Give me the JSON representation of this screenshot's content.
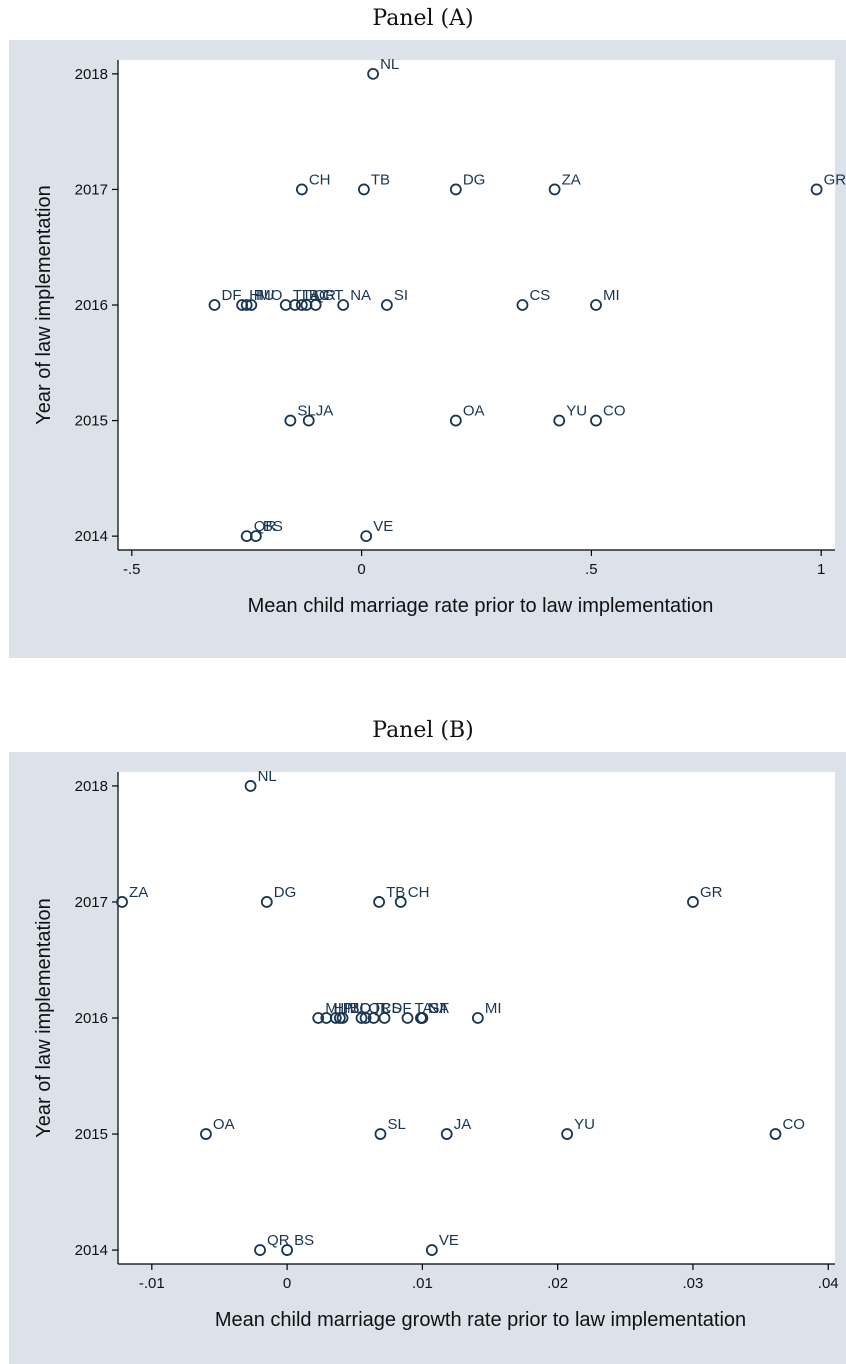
{
  "chart_data": [
    {
      "type": "scatter",
      "title": "Panel (A)",
      "xlabel": "Mean child marriage rate prior to law implementation",
      "ylabel": "Year of law implementation",
      "xlim": [
        -0.53,
        1.03
      ],
      "ylim": [
        2013.88,
        2018.12
      ],
      "xticks": [
        -0.5,
        0,
        0.5,
        1
      ],
      "xtick_labels": [
        "-.5",
        "0",
        ".5",
        "1"
      ],
      "yticks": [
        2014,
        2015,
        2016,
        2017,
        2018
      ],
      "ytick_labels": [
        "2014",
        "2015",
        "2016",
        "2017",
        "2018"
      ],
      "grid": false,
      "points": [
        {
          "label": "NL",
          "x": 0.025,
          "y": 2018
        },
        {
          "label": "CH",
          "x": -0.13,
          "y": 2017
        },
        {
          "label": "TB",
          "x": 0.005,
          "y": 2017
        },
        {
          "label": "DG",
          "x": 0.205,
          "y": 2017
        },
        {
          "label": "ZA",
          "x": 0.42,
          "y": 2017
        },
        {
          "label": "GR",
          "x": 0.99,
          "y": 2017
        },
        {
          "label": "DF",
          "x": -0.32,
          "y": 2016
        },
        {
          "label": "HI",
          "x": -0.26,
          "y": 2016
        },
        {
          "label": "PU",
          "x": -0.25,
          "y": 2016
        },
        {
          "label": "MO",
          "x": -0.24,
          "y": 2016
        },
        {
          "label": "TL",
          "x": -0.165,
          "y": 2016
        },
        {
          "label": "TA",
          "x": -0.145,
          "y": 2016
        },
        {
          "label": "BC",
          "x": -0.13,
          "y": 2016
        },
        {
          "label": "QR",
          "x": -0.12,
          "y": 2016
        },
        {
          "label": "GT",
          "x": -0.1,
          "y": 2016
        },
        {
          "label": "NA",
          "x": -0.04,
          "y": 2016
        },
        {
          "label": "SI",
          "x": 0.055,
          "y": 2016
        },
        {
          "label": "CS",
          "x": 0.35,
          "y": 2016
        },
        {
          "label": "MI",
          "x": 0.51,
          "y": 2016
        },
        {
          "label": "SL",
          "x": -0.155,
          "y": 2015
        },
        {
          "label": "JA",
          "x": -0.115,
          "y": 2015
        },
        {
          "label": "OA",
          "x": 0.205,
          "y": 2015
        },
        {
          "label": "YU",
          "x": 0.43,
          "y": 2015
        },
        {
          "label": "CO",
          "x": 0.51,
          "y": 2015
        },
        {
          "label": "QR",
          "x": -0.25,
          "y": 2014
        },
        {
          "label": "BS",
          "x": -0.23,
          "y": 2014
        },
        {
          "label": "VE",
          "x": 0.01,
          "y": 2014
        }
      ]
    },
    {
      "type": "scatter",
      "title": "Panel (B)",
      "xlabel": "Mean child marriage growth rate prior to law implementation",
      "ylabel": "Year of law implementation",
      "xlim": [
        -0.0125,
        0.0405
      ],
      "ylim": [
        2013.88,
        2018.12
      ],
      "xticks": [
        -0.01,
        0,
        0.01,
        0.02,
        0.03,
        0.04
      ],
      "xtick_labels": [
        "-.01",
        "0",
        ".01",
        ".02",
        ".03",
        ".04"
      ],
      "yticks": [
        2014,
        2015,
        2016,
        2017,
        2018
      ],
      "ytick_labels": [
        "2014",
        "2015",
        "2016",
        "2017",
        "2018"
      ],
      "grid": false,
      "points": [
        {
          "label": "NL",
          "x": -0.0027,
          "y": 2018
        },
        {
          "label": "ZA",
          "x": -0.0122,
          "y": 2017
        },
        {
          "label": "DG",
          "x": -0.0015,
          "y": 2017
        },
        {
          "label": "TB",
          "x": 0.0068,
          "y": 2017
        },
        {
          "label": "CH",
          "x": 0.0084,
          "y": 2017
        },
        {
          "label": "GR",
          "x": 0.03,
          "y": 2017
        },
        {
          "label": "MI",
          "x": 0.0023,
          "y": 2016
        },
        {
          "label": "HI",
          "x": 0.0029,
          "y": 2016
        },
        {
          "label": "PU",
          "x": 0.0036,
          "y": 2016
        },
        {
          "label": "MO",
          "x": 0.0039,
          "y": 2016
        },
        {
          "label": "BC",
          "x": 0.0041,
          "y": 2016
        },
        {
          "label": "QR",
          "x": 0.0055,
          "y": 2016
        },
        {
          "label": "TL",
          "x": 0.0058,
          "y": 2016
        },
        {
          "label": "CS",
          "x": 0.0064,
          "y": 2016
        },
        {
          "label": "DF",
          "x": 0.0072,
          "y": 2016
        },
        {
          "label": "TA",
          "x": 0.0089,
          "y": 2016
        },
        {
          "label": "GT",
          "x": 0.0099,
          "y": 2016
        },
        {
          "label": "SI",
          "x": 0.01,
          "y": 2016
        },
        {
          "label": "NA",
          "x": 0.0099,
          "y": 2016
        },
        {
          "label": "MI",
          "x": 0.0141,
          "y": 2016
        },
        {
          "label": "OA",
          "x": -0.006,
          "y": 2015
        },
        {
          "label": "SL",
          "x": 0.0069,
          "y": 2015
        },
        {
          "label": "JA",
          "x": 0.0118,
          "y": 2015
        },
        {
          "label": "YU",
          "x": 0.0207,
          "y": 2015
        },
        {
          "label": "CO",
          "x": 0.0361,
          "y": 2015
        },
        {
          "label": "QR",
          "x": -0.002,
          "y": 2014
        },
        {
          "label": "BS",
          "x": 0.0,
          "y": 2014
        },
        {
          "label": "VE",
          "x": 0.0107,
          "y": 2014
        }
      ]
    }
  ]
}
